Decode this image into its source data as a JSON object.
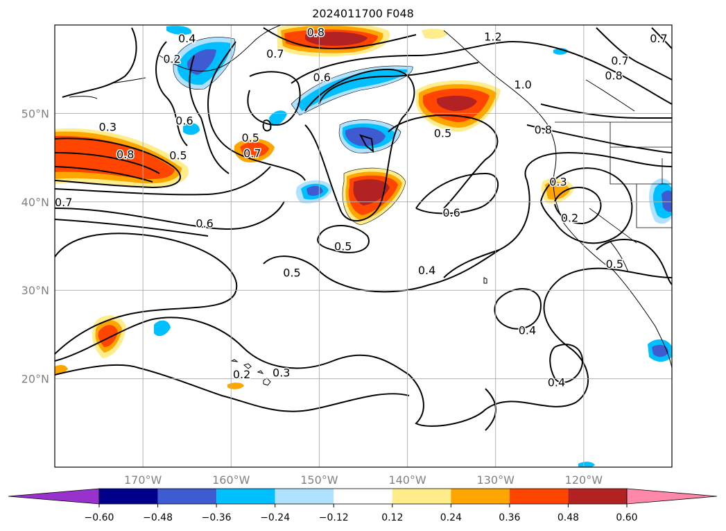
{
  "title": "2024011700 F048",
  "map": {
    "lon_range": [
      -180,
      -110
    ],
    "lat_range": [
      10,
      60
    ],
    "lat_ticks": [
      {
        "lat": 50,
        "label": "50°N"
      },
      {
        "lat": 40,
        "label": "40°N"
      },
      {
        "lat": 30,
        "label": "30°N"
      },
      {
        "lat": 20,
        "label": "20°N"
      }
    ],
    "lon_ticks": [
      {
        "lon": -170,
        "label": "170°W"
      },
      {
        "lon": -160,
        "label": "160°W"
      },
      {
        "lon": -150,
        "label": "150°W"
      },
      {
        "lon": -140,
        "label": "140°W"
      },
      {
        "lon": -130,
        "label": "130°W"
      },
      {
        "lon": -120,
        "label": "120°W"
      }
    ],
    "grid": true,
    "contour_labels": [
      {
        "text": "0.8",
        "lon": -172,
        "lat": 45.4
      },
      {
        "text": "0.3",
        "lon": -174,
        "lat": 48.5
      },
      {
        "text": "0.5",
        "lon": -166,
        "lat": 45.3
      },
      {
        "text": "0.7",
        "lon": -179,
        "lat": 40
      },
      {
        "text": "0.2",
        "lon": -166.7,
        "lat": 56.2
      },
      {
        "text": "0.6",
        "lon": -165.3,
        "lat": 49.2
      },
      {
        "text": "0.6",
        "lon": -163,
        "lat": 37.6
      },
      {
        "text": "0.5",
        "lon": -157.8,
        "lat": 47.3
      },
      {
        "text": "0.7",
        "lon": -157.6,
        "lat": 45.5
      },
      {
        "text": "0.7",
        "lon": -155,
        "lat": 56.8
      },
      {
        "text": "0.8",
        "lon": -150.4,
        "lat": 59.2
      },
      {
        "text": "0.6",
        "lon": -149.7,
        "lat": 54.1
      },
      {
        "text": "0.5",
        "lon": -147.3,
        "lat": 35
      },
      {
        "text": "0.5",
        "lon": -153.1,
        "lat": 32
      },
      {
        "text": "0.3",
        "lon": -154.3,
        "lat": 20.7
      },
      {
        "text": "0.2",
        "lon": -158.8,
        "lat": 20.5
      },
      {
        "text": "0.4",
        "lon": -137.8,
        "lat": 32.3
      },
      {
        "text": "0.6",
        "lon": -135,
        "lat": 38.8
      },
      {
        "text": "0.5",
        "lon": -136,
        "lat": 47.8
      },
      {
        "text": "1.2",
        "lon": -130.3,
        "lat": 58.7
      },
      {
        "text": "1.0",
        "lon": -126.9,
        "lat": 53.3
      },
      {
        "text": "0.8",
        "lon": -124.6,
        "lat": 48.2
      },
      {
        "text": "0.3",
        "lon": -122.9,
        "lat": 42.3
      },
      {
        "text": "0.2",
        "lon": -121.6,
        "lat": 38.2
      },
      {
        "text": "0.7",
        "lon": -115.9,
        "lat": 56
      },
      {
        "text": "0.8",
        "lon": -116.6,
        "lat": 54.3
      },
      {
        "text": "0.7",
        "lon": -111.5,
        "lat": 58.5
      },
      {
        "text": "0.5",
        "lon": -116.5,
        "lat": 33
      },
      {
        "text": "0.4",
        "lon": -126.4,
        "lat": 25.5
      },
      {
        "text": "0.4",
        "lon": -123.1,
        "lat": 19.6
      },
      {
        "text": "0.4",
        "lon": -165,
        "lat": 58.5
      }
    ]
  },
  "colorbar": {
    "ticks": [
      "−0.60",
      "−0.48",
      "−0.36",
      "−0.24",
      "−0.12",
      "0.12",
      "0.24",
      "0.36",
      "0.48",
      "0.60"
    ],
    "colors": [
      "#9932cc",
      "#00008b",
      "#3e5bd2",
      "#00bfff",
      "#b0e2ff",
      "#ffffff",
      "#ffec8b",
      "#ffa500",
      "#ff4500",
      "#b22222",
      "#ff88aa"
    ]
  }
}
